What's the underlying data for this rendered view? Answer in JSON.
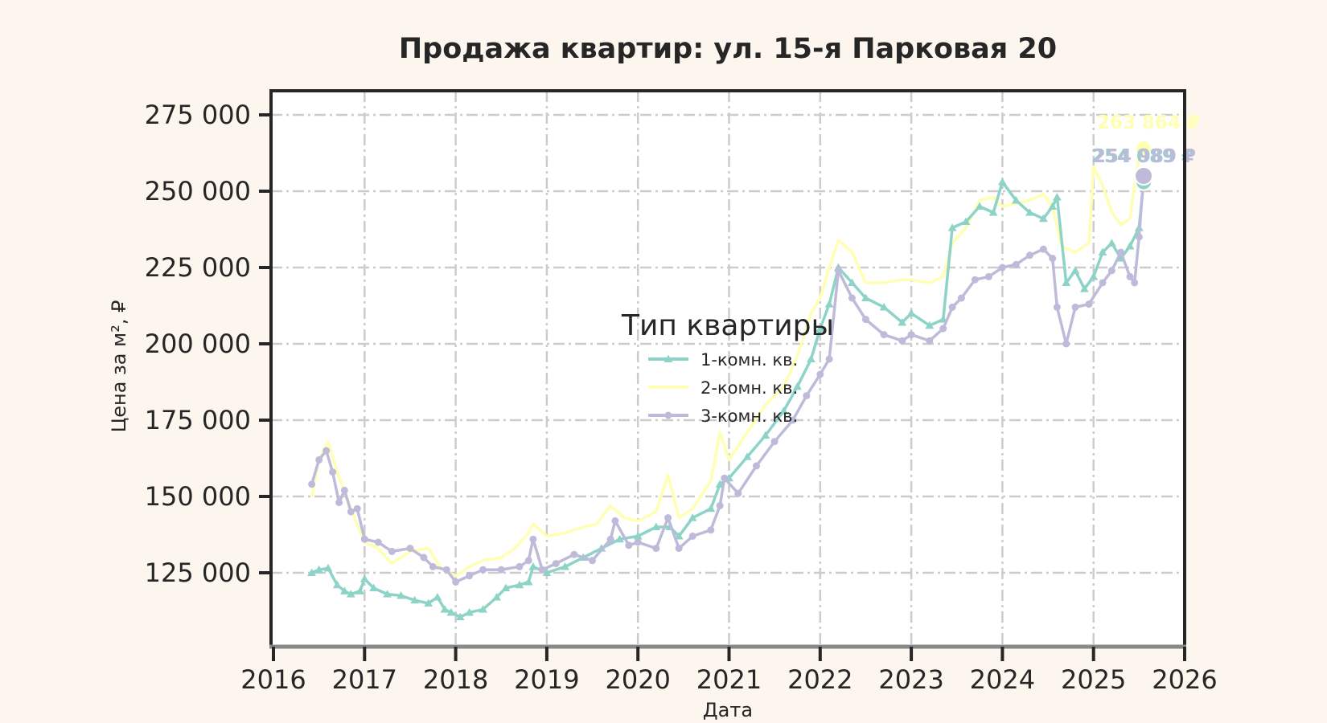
{
  "chart_data": {
    "type": "line",
    "title": "Продажа квартир: ул. 15-я Парковая 20",
    "xlabel": "Дата",
    "ylabel": "Цена за м², ₽",
    "xlim": [
      2016,
      2026
    ],
    "ylim": [
      100800,
      282900
    ],
    "x_ticks": [
      "2016",
      "2017",
      "2018",
      "2019",
      "2020",
      "2021",
      "2022",
      "2023",
      "2024",
      "2025",
      "2026"
    ],
    "y_ticks": [
      {
        "value": 125000,
        "label": "125 000"
      },
      {
        "value": 150000,
        "label": "150 000"
      },
      {
        "value": 175000,
        "label": "175 000"
      },
      {
        "value": 200000,
        "label": "200 000"
      },
      {
        "value": 225000,
        "label": "225 000"
      },
      {
        "value": 250000,
        "label": "250 000"
      },
      {
        "value": 275000,
        "label": "275 000"
      }
    ],
    "grid": true,
    "legend": {
      "title": "Тип квартиры",
      "position": "center",
      "entries": [
        "1-комн. кв.",
        "2-комн. кв.",
        "3-комн. кв."
      ]
    },
    "series": [
      {
        "name": "1-комн. кв.",
        "color": "#8dd3c7",
        "marker": "triangle",
        "x": [
          2016.42,
          2016.5,
          2016.6,
          2016.7,
          2016.78,
          2016.85,
          2016.95,
          2017.0,
          2017.1,
          2017.25,
          2017.4,
          2017.55,
          2017.7,
          2017.8,
          2017.88,
          2017.95,
          2018.05,
          2018.15,
          2018.3,
          2018.45,
          2018.55,
          2018.7,
          2018.8,
          2018.85,
          2019.0,
          2019.2,
          2019.4,
          2019.6,
          2019.8,
          2020.0,
          2020.2,
          2020.35,
          2020.45,
          2020.6,
          2020.8,
          2020.9,
          2021.0,
          2021.2,
          2021.4,
          2021.6,
          2021.75,
          2021.9,
          2022.0,
          2022.1,
          2022.2,
          2022.35,
          2022.5,
          2022.7,
          2022.9,
          2023.0,
          2023.2,
          2023.35,
          2023.45,
          2023.6,
          2023.75,
          2023.9,
          2024.0,
          2024.15,
          2024.3,
          2024.45,
          2024.55,
          2024.6,
          2024.7,
          2024.8,
          2024.9,
          2025.0,
          2025.1,
          2025.2,
          2025.3,
          2025.4,
          2025.5,
          2025.55
        ],
        "y": [
          125000,
          126000,
          126500,
          121000,
          119000,
          118000,
          119000,
          123000,
          120000,
          118000,
          117500,
          116000,
          115000,
          117000,
          113000,
          112000,
          110500,
          112000,
          113000,
          117000,
          120000,
          121000,
          122000,
          127000,
          125000,
          127000,
          130000,
          133000,
          136000,
          137000,
          140000,
          140000,
          137000,
          143000,
          146000,
          154000,
          156000,
          163000,
          170000,
          178000,
          186000,
          195000,
          205000,
          213000,
          225000,
          220000,
          215000,
          212000,
          207000,
          210000,
          206000,
          208000,
          238000,
          240000,
          245000,
          243000,
          253000,
          247000,
          243000,
          241000,
          245000,
          248000,
          220000,
          224000,
          218000,
          222000,
          230000,
          233000,
          228000,
          232000,
          238000,
          253000
        ]
      },
      {
        "name": "2-комн. кв.",
        "color": "#ffffb3",
        "marker": "none",
        "x": [
          2016.42,
          2016.5,
          2016.6,
          2016.7,
          2016.8,
          2016.9,
          2017.0,
          2017.15,
          2017.3,
          2017.5,
          2017.7,
          2017.85,
          2018.0,
          2018.15,
          2018.3,
          2018.5,
          2018.65,
          2018.8,
          2018.85,
          2019.0,
          2019.2,
          2019.4,
          2019.55,
          2019.7,
          2019.85,
          2020.0,
          2020.2,
          2020.33,
          2020.45,
          2020.6,
          2020.8,
          2020.9,
          2021.0,
          2021.2,
          2021.4,
          2021.6,
          2021.75,
          2021.9,
          2022.0,
          2022.1,
          2022.2,
          2022.35,
          2022.5,
          2022.7,
          2022.9,
          2023.0,
          2023.2,
          2023.35,
          2023.45,
          2023.6,
          2023.75,
          2023.9,
          2024.0,
          2024.15,
          2024.3,
          2024.45,
          2024.55,
          2024.65,
          2024.8,
          2024.95,
          2025.0,
          2025.1,
          2025.2,
          2025.3,
          2025.4,
          2025.5,
          2025.55
        ],
        "y": [
          150000,
          162000,
          168000,
          158000,
          150000,
          142000,
          135000,
          133000,
          128000,
          132000,
          133000,
          126000,
          124000,
          127000,
          129000,
          130000,
          133000,
          138000,
          141000,
          137000,
          138000,
          140000,
          141000,
          147000,
          143000,
          142000,
          145000,
          157000,
          143000,
          146000,
          155000,
          171000,
          162000,
          171000,
          180000,
          186000,
          196000,
          210000,
          215000,
          225000,
          234000,
          230000,
          220000,
          220000,
          221000,
          221000,
          220000,
          222000,
          233000,
          238000,
          247000,
          248000,
          245000,
          246000,
          247000,
          249000,
          245000,
          232000,
          230000,
          233000,
          258000,
          252000,
          243000,
          239000,
          241000,
          262000,
          264000
        ]
      },
      {
        "name": "3-комн. кв.",
        "color": "#bebada",
        "marker": "circle",
        "x": [
          2016.42,
          2016.5,
          2016.58,
          2016.65,
          2016.72,
          2016.78,
          2016.85,
          2016.92,
          2017.0,
          2017.15,
          2017.3,
          2017.5,
          2017.65,
          2017.75,
          2017.9,
          2018.0,
          2018.15,
          2018.3,
          2018.5,
          2018.7,
          2018.8,
          2018.85,
          2018.95,
          2019.1,
          2019.3,
          2019.5,
          2019.7,
          2019.75,
          2019.9,
          2020.0,
          2020.2,
          2020.33,
          2020.45,
          2020.6,
          2020.8,
          2020.9,
          2020.95,
          2021.1,
          2021.3,
          2021.5,
          2021.7,
          2021.85,
          2022.0,
          2022.1,
          2022.2,
          2022.35,
          2022.5,
          2022.7,
          2022.9,
          2023.0,
          2023.2,
          2023.35,
          2023.45,
          2023.55,
          2023.7,
          2023.85,
          2024.0,
          2024.15,
          2024.3,
          2024.45,
          2024.55,
          2024.6,
          2024.7,
          2024.8,
          2024.95,
          2025.1,
          2025.2,
          2025.3,
          2025.4,
          2025.45,
          2025.5,
          2025.55
        ],
        "y": [
          154000,
          162000,
          165000,
          158000,
          148000,
          152000,
          145000,
          146000,
          136000,
          135000,
          132000,
          133000,
          130000,
          127000,
          126000,
          122000,
          124000,
          126000,
          126000,
          127000,
          129000,
          136000,
          126000,
          128000,
          131000,
          129000,
          136000,
          142000,
          134000,
          135000,
          133000,
          143000,
          133000,
          137000,
          139000,
          147000,
          156000,
          151000,
          160000,
          168000,
          175000,
          183000,
          190000,
          195000,
          224000,
          215000,
          208000,
          203000,
          201000,
          203000,
          201000,
          205000,
          212000,
          215000,
          221000,
          222000,
          225000,
          226000,
          229000,
          231000,
          228000,
          212000,
          200000,
          212000,
          213000,
          220000,
          224000,
          230000,
          222000,
          220000,
          235000,
          255000
        ]
      }
    ],
    "annotations": [
      {
        "series": "2-комн. кв.",
        "text": "263 864 ₽",
        "x": 2025.55,
        "y": 263864,
        "color": "#ffffb3"
      },
      {
        "series": "1-комн. кв.",
        "text": "254 089 ₽",
        "x": 2025.55,
        "y": 253000,
        "color": "#8dd3c7"
      },
      {
        "series": "3-комн. кв.",
        "text": "254 989 ₽",
        "x": 2025.55,
        "y": 254989,
        "color": "#bebada"
      }
    ]
  },
  "colors": {
    "background": "#fdf6ee",
    "plot_bg": "#ffffff",
    "grid": "#cccccc",
    "spine": "#262626",
    "bottom_spine": "#888888"
  }
}
